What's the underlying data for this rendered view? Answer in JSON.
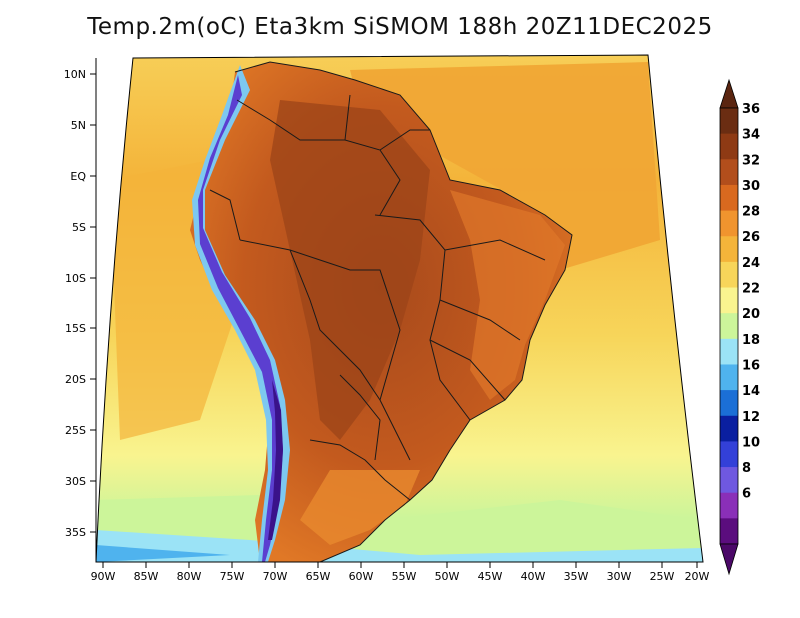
{
  "title": "Temp.2m(oC) Eta3km SiSMOM 188h 20Z11DEC2025",
  "axes": {
    "lon_labels": [
      "90W",
      "85W",
      "80W",
      "75W",
      "70W",
      "65W",
      "60W",
      "55W",
      "50W",
      "45W",
      "40W",
      "35W",
      "30W",
      "25W",
      "20W"
    ],
    "lat_labels": [
      "10N",
      "5N",
      "EQ",
      "5S",
      "10S",
      "15S",
      "20S",
      "25S",
      "30S",
      "35S"
    ]
  },
  "colorbar": {
    "labels": [
      "36",
      "34",
      "32",
      "30",
      "28",
      "26",
      "24",
      "22",
      "20",
      "18",
      "16",
      "14",
      "12",
      "10",
      "8",
      "6"
    ],
    "colors": [
      "#6b2d12",
      "#8e3a14",
      "#b24e1c",
      "#d9691f",
      "#f0942e",
      "#f4b43a",
      "#f7d55a",
      "#f9f48f",
      "#ccf59a",
      "#9be3f6",
      "#4fb3ee",
      "#1b6fd6",
      "#0a1fa0",
      "#3340d8",
      "#6f58e0",
      "#8a2fb8",
      "#5b0d7e"
    ],
    "top_color": "#5a2510",
    "bottom_color": "#4b0868"
  },
  "colors": {
    "ocean_warm": "#f2a83a",
    "ocean_mid": "#f7d35c",
    "ocean_cool": "#cdf59b",
    "ocean_cold": "#9ae0f4",
    "land": "#d96a22",
    "land_hot": "#a84a1c",
    "andes_cold": "#6a3fd6",
    "andes_snow": "#7dc8f0",
    "border": "#1a1a1a"
  }
}
